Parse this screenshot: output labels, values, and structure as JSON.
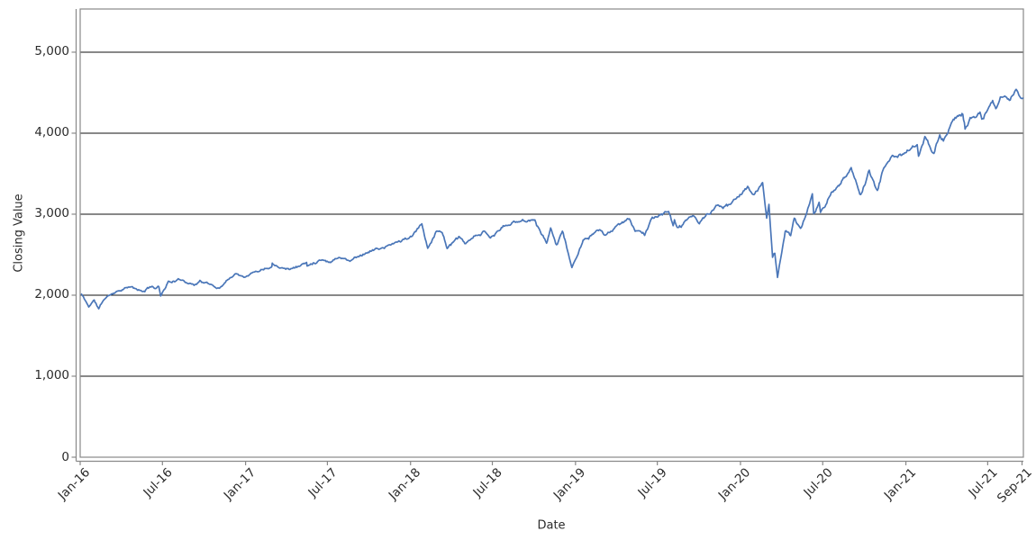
{
  "page": {
    "background": "#ffffff"
  },
  "chart_data": {
    "type": "line",
    "title": "",
    "xlabel": "Date",
    "ylabel": "Closing Value",
    "legend": "none",
    "grid": "horizontal-black-lines",
    "x_range": [
      "2016-01-01",
      "2021-09-18"
    ],
    "ylim": [
      0,
      5533
    ],
    "y_ticks": [
      0,
      1000,
      2000,
      3000,
      4000,
      5000
    ],
    "x_ticks": [
      {
        "label": "Jan-16",
        "date": "2016-01-01"
      },
      {
        "label": "Jul-16",
        "date": "2016-07-01"
      },
      {
        "label": "Jan-17",
        "date": "2017-01-01"
      },
      {
        "label": "Jul-17",
        "date": "2017-07-01"
      },
      {
        "label": "Jan-18",
        "date": "2018-01-01"
      },
      {
        "label": "Jul-18",
        "date": "2018-07-01"
      },
      {
        "label": "Jan-19",
        "date": "2019-01-01"
      },
      {
        "label": "Jul-19",
        "date": "2019-07-01"
      },
      {
        "label": "Jan-20",
        "date": "2020-01-01"
      },
      {
        "label": "Jul-20",
        "date": "2020-07-01"
      },
      {
        "label": "Jan-21",
        "date": "2021-01-01"
      },
      {
        "label": "Jul-21",
        "date": "2021-07-01"
      },
      {
        "label": "Sep-21",
        "date": "2021-09-15"
      }
    ],
    "colors": {
      "line": "#4a76b8",
      "grid": "#111111",
      "spine": "#898989",
      "tick_label": "#2b2b2b"
    },
    "series": [
      {
        "name": "Closing Value",
        "points": [
          [
            "2016-01-04",
            2013
          ],
          [
            "2016-01-20",
            1859
          ],
          [
            "2016-02-01",
            1940
          ],
          [
            "2016-02-11",
            1829
          ],
          [
            "2016-02-22",
            1945
          ],
          [
            "2016-03-11",
            2022
          ],
          [
            "2016-04-01",
            2073
          ],
          [
            "2016-04-20",
            2102
          ],
          [
            "2016-05-19",
            2040
          ],
          [
            "2016-06-08",
            2119
          ],
          [
            "2016-06-16",
            2078
          ],
          [
            "2016-06-23",
            2113
          ],
          [
            "2016-06-27",
            2001
          ],
          [
            "2016-07-14",
            2164
          ],
          [
            "2016-08-15",
            2190
          ],
          [
            "2016-09-09",
            2128
          ],
          [
            "2016-09-22",
            2177
          ],
          [
            "2016-10-13",
            2133
          ],
          [
            "2016-11-04",
            2085
          ],
          [
            "2016-11-25",
            2213
          ],
          [
            "2016-12-13",
            2271
          ],
          [
            "2016-12-30",
            2239
          ],
          [
            "2017-01-25",
            2298
          ],
          [
            "2017-02-28",
            2364
          ],
          [
            "2017-03-01",
            2396
          ],
          [
            "2017-03-27",
            2342
          ],
          [
            "2017-04-13",
            2329
          ],
          [
            "2017-05-16",
            2400
          ],
          [
            "2017-05-17",
            2357
          ],
          [
            "2017-06-19",
            2453
          ],
          [
            "2017-07-06",
            2410
          ],
          [
            "2017-07-26",
            2478
          ],
          [
            "2017-08-18",
            2426
          ],
          [
            "2017-09-12",
            2496
          ],
          [
            "2017-10-05",
            2552
          ],
          [
            "2017-11-08",
            2594
          ],
          [
            "2017-11-30",
            2648
          ],
          [
            "2017-12-18",
            2690
          ],
          [
            "2018-01-03",
            2713
          ],
          [
            "2018-01-26",
            2873
          ],
          [
            "2018-02-08",
            2581
          ],
          [
            "2018-02-26",
            2780
          ],
          [
            "2018-03-12",
            2783
          ],
          [
            "2018-03-23",
            2588
          ],
          [
            "2018-04-18",
            2708
          ],
          [
            "2018-05-03",
            2630
          ],
          [
            "2018-06-12",
            2787
          ],
          [
            "2018-06-27",
            2700
          ],
          [
            "2018-07-25",
            2846
          ],
          [
            "2018-08-29",
            2914
          ],
          [
            "2018-09-20",
            2931
          ],
          [
            "2018-10-03",
            2925
          ],
          [
            "2018-10-29",
            2641
          ],
          [
            "2018-11-07",
            2814
          ],
          [
            "2018-11-20",
            2642
          ],
          [
            "2018-12-03",
            2790
          ],
          [
            "2018-12-24",
            2351
          ],
          [
            "2019-01-03",
            2448
          ],
          [
            "2019-01-18",
            2671
          ],
          [
            "2019-02-25",
            2796
          ],
          [
            "2019-03-08",
            2743
          ],
          [
            "2019-04-30",
            2946
          ],
          [
            "2019-05-13",
            2812
          ],
          [
            "2019-06-03",
            2744
          ],
          [
            "2019-06-20",
            2954
          ],
          [
            "2019-07-26",
            3026
          ],
          [
            "2019-08-05",
            2845
          ],
          [
            "2019-08-08",
            2938
          ],
          [
            "2019-08-14",
            2841
          ],
          [
            "2019-08-23",
            2847
          ],
          [
            "2019-09-19",
            3007
          ],
          [
            "2019-10-02",
            2888
          ],
          [
            "2019-11-08",
            3093
          ],
          [
            "2019-12-03",
            3093
          ],
          [
            "2019-12-27",
            3240
          ],
          [
            "2020-01-17",
            3330
          ],
          [
            "2020-01-31",
            3226
          ],
          [
            "2020-02-19",
            3386
          ],
          [
            "2020-02-28",
            2954
          ],
          [
            "2020-03-04",
            3130
          ],
          [
            "2020-03-12",
            2481
          ],
          [
            "2020-03-17",
            2529
          ],
          [
            "2020-03-23",
            2237
          ],
          [
            "2020-04-09",
            2790
          ],
          [
            "2020-04-21",
            2737
          ],
          [
            "2020-04-29",
            2940
          ],
          [
            "2020-05-13",
            2820
          ],
          [
            "2020-06-08",
            3232
          ],
          [
            "2020-06-11",
            3002
          ],
          [
            "2020-06-23",
            3131
          ],
          [
            "2020-06-26",
            3009
          ],
          [
            "2020-07-22",
            3276
          ],
          [
            "2020-08-06",
            3349
          ],
          [
            "2020-08-28",
            3508
          ],
          [
            "2020-09-02",
            3581
          ],
          [
            "2020-09-23",
            3237
          ],
          [
            "2020-10-12",
            3534
          ],
          [
            "2020-10-30",
            3270
          ],
          [
            "2020-11-13",
            3585
          ],
          [
            "2020-12-04",
            3699
          ],
          [
            "2020-12-31",
            3756
          ],
          [
            "2021-01-26",
            3850
          ],
          [
            "2021-01-29",
            3714
          ],
          [
            "2021-02-12",
            3935
          ],
          [
            "2021-03-04",
            3768
          ],
          [
            "2021-03-17",
            3974
          ],
          [
            "2021-03-25",
            3910
          ],
          [
            "2021-04-16",
            4185
          ],
          [
            "2021-05-07",
            4233
          ],
          [
            "2021-05-12",
            4063
          ],
          [
            "2021-05-27",
            4201
          ],
          [
            "2021-06-14",
            4255
          ],
          [
            "2021-06-18",
            4166
          ],
          [
            "2021-07-12",
            4385
          ],
          [
            "2021-07-19",
            4258
          ],
          [
            "2021-07-29",
            4419
          ],
          [
            "2021-08-18",
            4400
          ],
          [
            "2021-09-02",
            4537
          ],
          [
            "2021-09-10",
            4459
          ],
          [
            "2021-09-17",
            4433
          ]
        ]
      }
    ]
  }
}
